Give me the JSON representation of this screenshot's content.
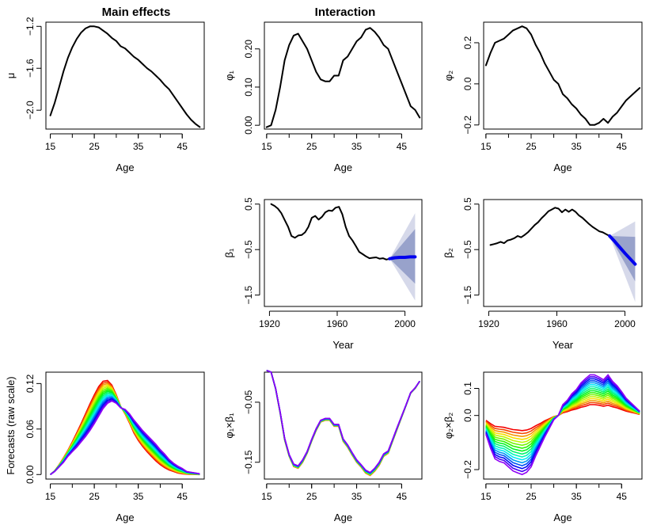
{
  "titles": {
    "main_effects": "Main effects",
    "interaction": "Interaction"
  },
  "chart_data": [
    {
      "id": "mu",
      "type": "line",
      "xlabel": "Age",
      "ylabel": "μ",
      "xlim": [
        14,
        50
      ],
      "ylim": [
        -2.18,
        -1.16
      ],
      "xticks": [
        15,
        25,
        35,
        45
      ],
      "yticks": [
        -2.0,
        -1.6,
        -1.2
      ],
      "ytick_labels": [
        "−2.0",
        "−1.6",
        "−1.2"
      ],
      "series": [
        {
          "color": "#000000",
          "x": [
            15,
            16,
            17,
            18,
            19,
            20,
            21,
            22,
            23,
            24,
            25,
            26,
            27,
            28,
            29,
            30,
            31,
            32,
            33,
            34,
            35,
            36,
            37,
            38,
            39,
            40,
            41,
            42,
            43,
            44,
            45,
            46,
            47,
            48,
            49
          ],
          "y": [
            -2.05,
            -1.93,
            -1.78,
            -1.63,
            -1.5,
            -1.4,
            -1.32,
            -1.26,
            -1.22,
            -1.2,
            -1.2,
            -1.21,
            -1.24,
            -1.27,
            -1.31,
            -1.34,
            -1.39,
            -1.41,
            -1.45,
            -1.49,
            -1.52,
            -1.56,
            -1.6,
            -1.63,
            -1.67,
            -1.71,
            -1.76,
            -1.8,
            -1.86,
            -1.92,
            -1.98,
            -2.04,
            -2.09,
            -2.13,
            -2.16
          ]
        }
      ]
    },
    {
      "id": "phi1",
      "type": "line",
      "xlabel": "Age",
      "ylabel": "φ₁",
      "xlim": [
        14.5,
        49.5
      ],
      "ylim": [
        -0.01,
        0.27
      ],
      "xticks": [
        15,
        25,
        35,
        45
      ],
      "yticks": [
        0.0,
        0.1,
        0.2
      ],
      "ytick_labels": [
        "0.00",
        "0.10",
        "0.20"
      ],
      "series": [
        {
          "color": "#000000",
          "x": [
            15,
            16,
            17,
            18,
            19,
            20,
            21,
            22,
            23,
            24,
            25,
            26,
            27,
            28,
            29,
            30,
            31,
            32,
            33,
            34,
            35,
            36,
            37,
            38,
            39,
            40,
            41,
            42,
            43,
            44,
            45,
            46,
            47,
            48,
            49
          ],
          "y": [
            -0.005,
            0.0,
            0.04,
            0.1,
            0.17,
            0.21,
            0.235,
            0.24,
            0.22,
            0.2,
            0.17,
            0.14,
            0.12,
            0.115,
            0.115,
            0.13,
            0.13,
            0.17,
            0.18,
            0.2,
            0.22,
            0.23,
            0.25,
            0.255,
            0.245,
            0.23,
            0.21,
            0.2,
            0.17,
            0.14,
            0.11,
            0.08,
            0.05,
            0.04,
            0.02
          ]
        }
      ]
    },
    {
      "id": "phi2",
      "type": "line",
      "xlabel": "Age",
      "ylabel": "φ₂",
      "xlim": [
        14.5,
        49.5
      ],
      "ylim": [
        -0.22,
        0.3
      ],
      "xticks": [
        15,
        25,
        35,
        45
      ],
      "yticks": [
        -0.2,
        0.0,
        0.2
      ],
      "ytick_labels": [
        "−0.2",
        "0.0",
        "0.2"
      ],
      "series": [
        {
          "color": "#000000",
          "x": [
            15,
            16,
            17,
            18,
            19,
            20,
            21,
            22,
            23,
            24,
            25,
            26,
            27,
            28,
            29,
            30,
            31,
            32,
            33,
            34,
            35,
            36,
            37,
            38,
            39,
            40,
            41,
            42,
            43,
            44,
            45,
            46,
            47,
            48,
            49
          ],
          "y": [
            0.09,
            0.15,
            0.2,
            0.21,
            0.22,
            0.24,
            0.26,
            0.27,
            0.28,
            0.27,
            0.24,
            0.19,
            0.15,
            0.1,
            0.06,
            0.02,
            0.0,
            -0.05,
            -0.07,
            -0.1,
            -0.12,
            -0.15,
            -0.17,
            -0.2,
            -0.2,
            -0.19,
            -0.17,
            -0.19,
            -0.16,
            -0.14,
            -0.11,
            -0.08,
            -0.06,
            -0.04,
            -0.02
          ]
        }
      ]
    },
    {
      "id": "beta1",
      "type": "line",
      "xlabel": "Year",
      "ylabel": "β₁",
      "xlim": [
        1917,
        2010
      ],
      "ylim": [
        -1.75,
        0.6
      ],
      "xticks": [
        1920,
        1960,
        2000
      ],
      "yticks": [
        -1.5,
        -0.5,
        0.5
      ],
      "ytick_labels": [
        "−1.5",
        "−0.5",
        "0.5"
      ],
      "series": [
        {
          "color": "#000000",
          "x": [
            1921,
            1923,
            1925,
            1927,
            1929,
            1931,
            1933,
            1935,
            1937,
            1939,
            1941,
            1943,
            1945,
            1947,
            1949,
            1951,
            1953,
            1955,
            1957,
            1959,
            1961,
            1963,
            1965,
            1967,
            1969,
            1971,
            1973,
            1975,
            1977,
            1979,
            1981,
            1983,
            1985,
            1987,
            1989,
            1991
          ],
          "y": [
            0.5,
            0.46,
            0.4,
            0.3,
            0.15,
            0.0,
            -0.2,
            -0.24,
            -0.19,
            -0.18,
            -0.12,
            0.0,
            0.2,
            0.24,
            0.16,
            0.22,
            0.32,
            0.36,
            0.35,
            0.42,
            0.44,
            0.28,
            0.0,
            -0.2,
            -0.3,
            -0.42,
            -0.55,
            -0.6,
            -0.65,
            -0.69,
            -0.68,
            -0.67,
            -0.7,
            -0.69,
            -0.72,
            -0.7
          ]
        },
        {
          "color": "#0000ee",
          "x": [
            1991,
            1994,
            1997,
            2000,
            2003,
            2006
          ],
          "y": [
            -0.7,
            -0.68,
            -0.67,
            -0.67,
            -0.66,
            -0.66
          ]
        }
      ],
      "bands": [
        {
          "color": "#d6d9ea",
          "x": [
            1991,
            2006
          ],
          "upper": [
            -0.7,
            0.3
          ],
          "lower": [
            -0.7,
            -1.62
          ]
        },
        {
          "color": "#98a2cb",
          "x": [
            1991,
            2006
          ],
          "upper": [
            -0.7,
            -0.05
          ],
          "lower": [
            -0.7,
            -1.25
          ]
        }
      ]
    },
    {
      "id": "beta2",
      "type": "line",
      "xlabel": "Year",
      "ylabel": "β₂",
      "xlim": [
        1917,
        2010
      ],
      "ylim": [
        -1.75,
        0.6
      ],
      "xticks": [
        1920,
        1960,
        2000
      ],
      "yticks": [
        -1.5,
        -0.5,
        0.5
      ],
      "ytick_labels": [
        "−1.5",
        "−0.5",
        "0.5"
      ],
      "series": [
        {
          "color": "#000000",
          "x": [
            1921,
            1923,
            1925,
            1927,
            1929,
            1931,
            1933,
            1935,
            1937,
            1939,
            1941,
            1943,
            1945,
            1947,
            1949,
            1951,
            1953,
            1955,
            1957,
            1959,
            1961,
            1963,
            1965,
            1967,
            1969,
            1971,
            1973,
            1975,
            1977,
            1979,
            1981,
            1983,
            1985,
            1987,
            1989,
            1991
          ],
          "y": [
            -0.4,
            -0.38,
            -0.36,
            -0.33,
            -0.36,
            -0.3,
            -0.28,
            -0.25,
            -0.2,
            -0.23,
            -0.18,
            -0.12,
            -0.04,
            0.04,
            0.1,
            0.19,
            0.26,
            0.34,
            0.38,
            0.42,
            0.4,
            0.32,
            0.38,
            0.33,
            0.38,
            0.33,
            0.25,
            0.2,
            0.13,
            0.06,
            0.0,
            -0.05,
            -0.1,
            -0.12,
            -0.16,
            -0.2
          ]
        },
        {
          "color": "#0000ee",
          "x": [
            1991,
            1994,
            1997,
            2000,
            2003,
            2006
          ],
          "y": [
            -0.2,
            -0.32,
            -0.45,
            -0.58,
            -0.7,
            -0.82
          ]
        }
      ],
      "bands": [
        {
          "color": "#d6d9ea",
          "x": [
            1991,
            2006
          ],
          "upper": [
            -0.2,
            0.12
          ],
          "lower": [
            -0.2,
            -1.65
          ]
        },
        {
          "color": "#98a2cb",
          "x": [
            1991,
            2006
          ],
          "upper": [
            -0.2,
            -0.22
          ],
          "lower": [
            -0.2,
            -1.2
          ]
        }
      ]
    },
    {
      "id": "forecasts_raw",
      "type": "line",
      "xlabel": "Age",
      "ylabel": "Forecasts (raw scale)",
      "xlim": [
        14,
        50
      ],
      "ylim": [
        -0.006,
        0.135
      ],
      "xticks": [
        15,
        25,
        35,
        45
      ],
      "yticks": [
        0.0,
        0.06,
        0.12
      ],
      "ytick_labels": [
        "0.00",
        "0.06",
        "0.12"
      ],
      "x": [
        15,
        16,
        17,
        18,
        19,
        20,
        21,
        22,
        23,
        24,
        25,
        26,
        27,
        28,
        29,
        30,
        31,
        32,
        33,
        34,
        35,
        36,
        37,
        38,
        39,
        40,
        41,
        42,
        43,
        44,
        45,
        46,
        47,
        48,
        49
      ],
      "curve_first": [
        0.0,
        0.005,
        0.013,
        0.022,
        0.032,
        0.043,
        0.055,
        0.067,
        0.08,
        0.093,
        0.105,
        0.116,
        0.123,
        0.124,
        0.118,
        0.105,
        0.09,
        0.08,
        0.068,
        0.055,
        0.045,
        0.037,
        0.03,
        0.024,
        0.018,
        0.013,
        0.009,
        0.006,
        0.004,
        0.002,
        0.001,
        0.0005,
        0.0002,
        0.0001,
        0.0
      ],
      "curve_last": [
        0.0,
        0.004,
        0.01,
        0.016,
        0.024,
        0.03,
        0.036,
        0.043,
        0.05,
        0.058,
        0.067,
        0.077,
        0.087,
        0.094,
        0.097,
        0.094,
        0.088,
        0.086,
        0.08,
        0.072,
        0.065,
        0.058,
        0.052,
        0.046,
        0.04,
        0.033,
        0.027,
        0.02,
        0.015,
        0.011,
        0.008,
        0.004,
        0.003,
        0.002,
        0.001
      ],
      "n_curves": 16,
      "palette": "rainbow red-to-violet"
    },
    {
      "id": "phi1_beta1",
      "type": "line",
      "xlabel": "Age",
      "ylabel": "φ₁×β₁",
      "xlim": [
        14.5,
        49.5
      ],
      "ylim": [
        -0.178,
        0.0
      ],
      "xticks": [
        15,
        25,
        35,
        45
      ],
      "yticks": [
        -0.15,
        -0.05
      ],
      "ytick_labels": [
        "−0.15",
        "−0.05"
      ],
      "x": [
        15,
        16,
        17,
        18,
        19,
        20,
        21,
        22,
        23,
        24,
        25,
        26,
        27,
        28,
        29,
        30,
        31,
        32,
        33,
        34,
        35,
        36,
        37,
        38,
        39,
        40,
        41,
        42,
        43,
        44,
        45,
        46,
        47,
        48,
        49
      ],
      "curve_first": [
        0.003,
        0.0,
        -0.028,
        -0.068,
        -0.113,
        -0.14,
        -0.157,
        -0.16,
        -0.15,
        -0.135,
        -0.115,
        -0.097,
        -0.083,
        -0.08,
        -0.08,
        -0.09,
        -0.09,
        -0.115,
        -0.125,
        -0.138,
        -0.15,
        -0.158,
        -0.168,
        -0.172,
        -0.165,
        -0.155,
        -0.14,
        -0.135,
        -0.115,
        -0.095,
        -0.075,
        -0.055,
        -0.035,
        -0.027,
        -0.015
      ],
      "curve_last": [
        0.003,
        0.0,
        -0.027,
        -0.066,
        -0.11,
        -0.137,
        -0.153,
        -0.156,
        -0.146,
        -0.132,
        -0.112,
        -0.094,
        -0.08,
        -0.077,
        -0.077,
        -0.087,
        -0.087,
        -0.111,
        -0.121,
        -0.134,
        -0.146,
        -0.154,
        -0.163,
        -0.167,
        -0.16,
        -0.15,
        -0.136,
        -0.131,
        -0.112,
        -0.092,
        -0.073,
        -0.054,
        -0.034,
        -0.026,
        -0.015
      ],
      "n_curves": 16,
      "palette": "rainbow red-to-violet"
    },
    {
      "id": "phi2_beta2",
      "type": "line",
      "xlabel": "Age",
      "ylabel": "φ₂×β₂",
      "xlim": [
        14.5,
        49.5
      ],
      "ylim": [
        -0.235,
        0.16
      ],
      "xticks": [
        15,
        25,
        35,
        45
      ],
      "yticks": [
        -0.2,
        0.0,
        0.1
      ],
      "ytick_labels": [
        "−0.2",
        "0.0",
        "0.1"
      ],
      "x": [
        15,
        16,
        17,
        18,
        19,
        20,
        21,
        22,
        23,
        24,
        25,
        26,
        27,
        28,
        29,
        30,
        31,
        32,
        33,
        34,
        35,
        36,
        37,
        38,
        39,
        40,
        41,
        42,
        43,
        44,
        45,
        46,
        47,
        48,
        49
      ],
      "curve_first": [
        -0.018,
        -0.03,
        -0.04,
        -0.042,
        -0.044,
        -0.048,
        -0.052,
        -0.054,
        -0.056,
        -0.054,
        -0.048,
        -0.038,
        -0.03,
        -0.02,
        -0.012,
        -0.004,
        0.0,
        0.01,
        0.014,
        0.02,
        0.024,
        0.03,
        0.034,
        0.04,
        0.04,
        0.038,
        0.034,
        0.038,
        0.032,
        0.028,
        0.022,
        0.016,
        0.012,
        0.008,
        0.004
      ],
      "curve_last": [
        -0.07,
        -0.12,
        -0.16,
        -0.17,
        -0.175,
        -0.19,
        -0.205,
        -0.212,
        -0.218,
        -0.21,
        -0.19,
        -0.15,
        -0.115,
        -0.08,
        -0.048,
        -0.016,
        0.0,
        0.04,
        0.056,
        0.08,
        0.096,
        0.12,
        0.136,
        0.15,
        0.15,
        0.142,
        0.132,
        0.15,
        0.126,
        0.11,
        0.088,
        0.064,
        0.048,
        0.032,
        0.016
      ],
      "n_curves": 16,
      "palette": "rainbow red-to-violet"
    }
  ]
}
